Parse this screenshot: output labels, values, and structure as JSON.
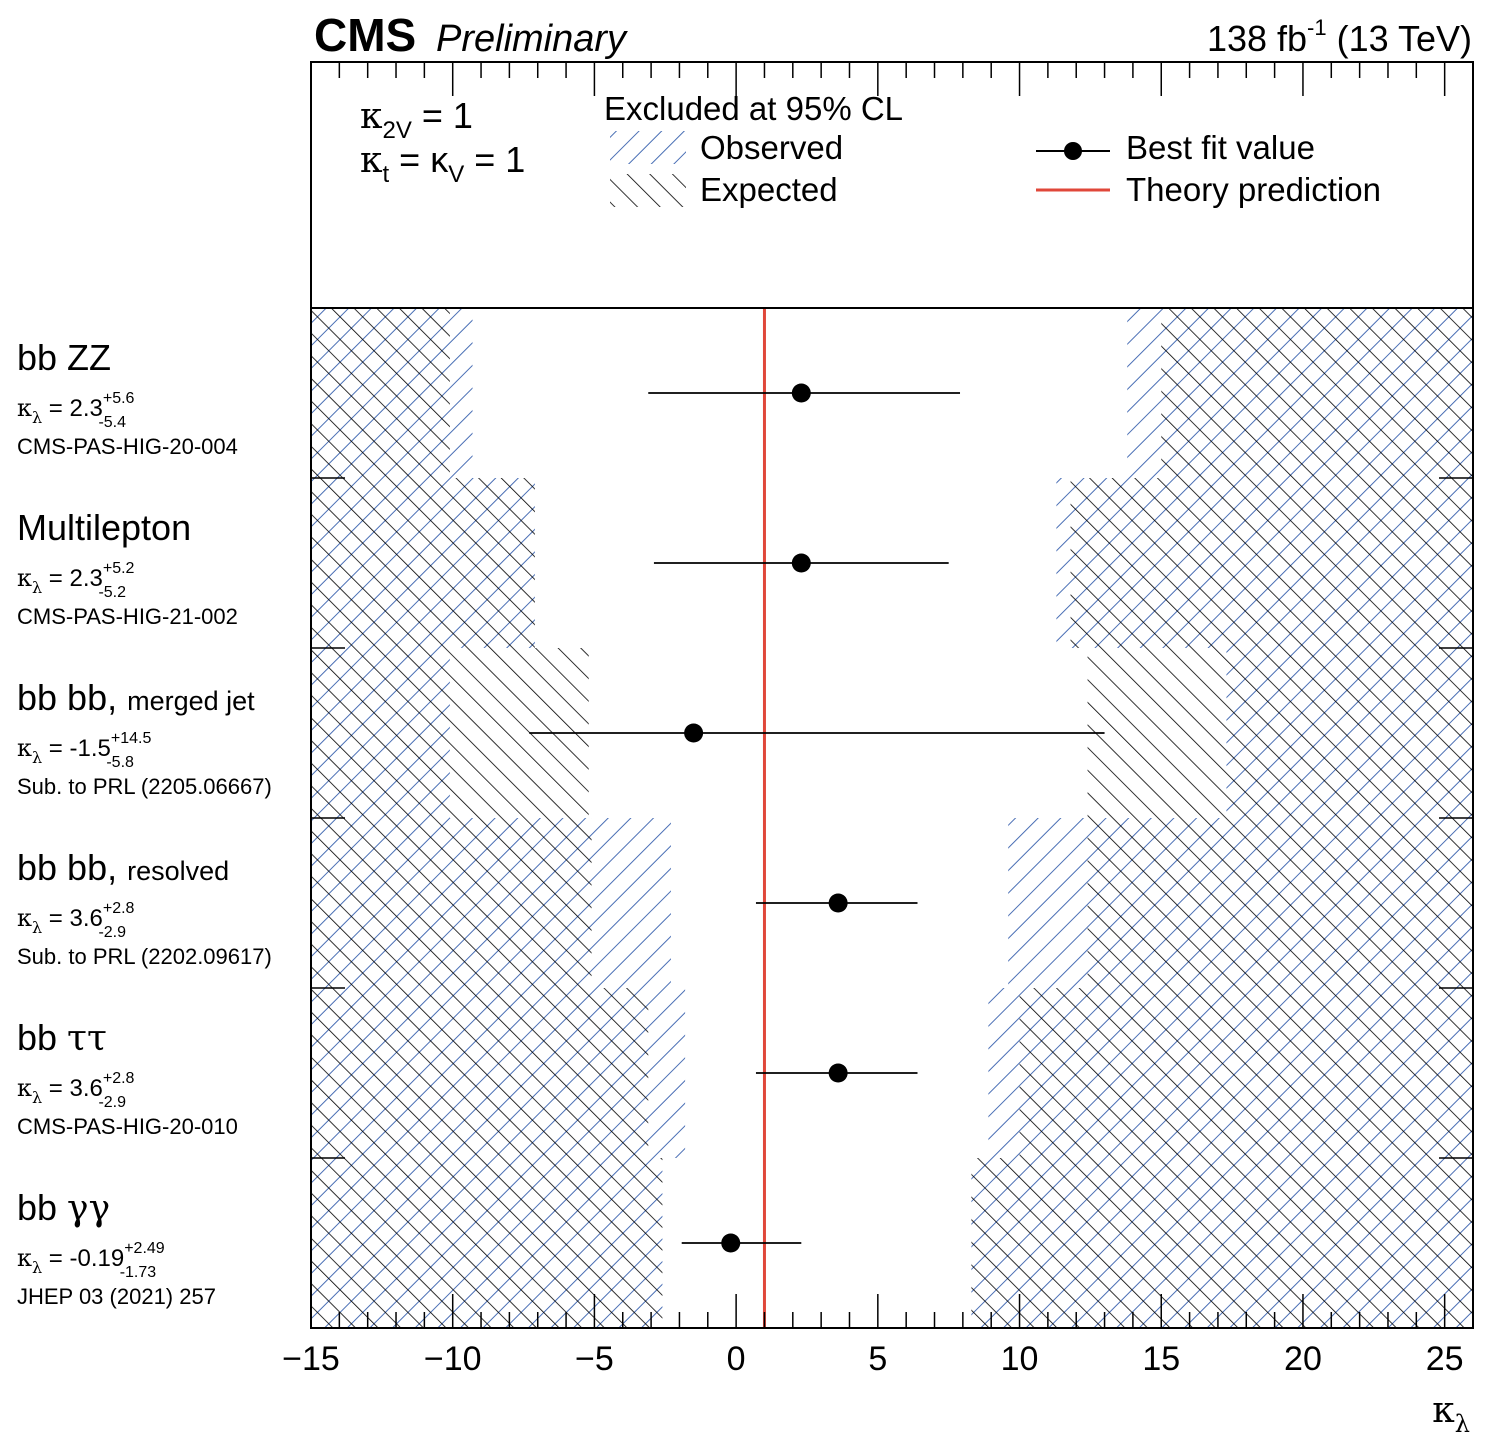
{
  "header": {
    "experiment": "CMS",
    "status": "Preliminary",
    "lumi_value": "138 fb",
    "lumi_exp": "-1",
    "energy": " (13 TeV)"
  },
  "conditions": {
    "line1_sym": "κ",
    "line1_sub": "2V",
    "line1_val": " = 1",
    "line2_sym": "κ",
    "line2_sub": "t",
    "line2_mid": " = κ",
    "line2_sub2": "V",
    "line2_val": " = 1"
  },
  "legend": {
    "header": "Excluded at 95% CL",
    "observed": "Observed",
    "expected": "Expected",
    "bestfit": "Best fit value",
    "theory": "Theory prediction"
  },
  "colors": {
    "observed_hatch": "#4a6fb5",
    "expected_hatch": "#000000",
    "theory_line": "#e0473a",
    "frame": "#000000"
  },
  "chart_data": {
    "type": "scatter",
    "title": "CMS Preliminary",
    "xlabel": "κλ",
    "xlim": [
      -15,
      26
    ],
    "xticks": [
      -15,
      -10,
      -5,
      0,
      5,
      10,
      15,
      20,
      25
    ],
    "xtick_labels": [
      "−15",
      "−10",
      "−5",
      "0",
      "5",
      "10",
      "15",
      "20",
      "25"
    ],
    "theory_prediction": 1,
    "channels": [
      {
        "name": "bb ZZ",
        "name_small": "",
        "best": 2.3,
        "up": 5.6,
        "down": 5.4,
        "best_str": "2.3",
        "up_str": "+5.6",
        "down_str": "-5.4",
        "ref": "CMS-PAS-HIG-20-004",
        "obs": [
          -9.3,
          13.8
        ],
        "exp": [
          -10.1,
          15.0
        ]
      },
      {
        "name": "Multilepton",
        "name_small": "",
        "best": 2.3,
        "up": 5.2,
        "down": 5.2,
        "best_str": "2.3",
        "up_str": "+5.2",
        "down_str": "-5.2",
        "ref": "CMS-PAS-HIG-21-002",
        "obs": [
          -7.1,
          11.3
        ],
        "exp": [
          -7.1,
          11.8
        ]
      },
      {
        "name": "bb bb,",
        "name_small": "merged jet",
        "best": -1.5,
        "up": 14.5,
        "down": 5.8,
        "best_str": "-1.5",
        "up_str": "+14.5",
        "down_str": "-5.8",
        "ref": "Sub. to PRL (2205.06667)",
        "obs": [
          -10.1,
          17.3
        ],
        "exp": [
          -5.2,
          12.4
        ]
      },
      {
        "name": "bb bb,",
        "name_small": "resolved",
        "best": 3.6,
        "up": 2.8,
        "down": 2.9,
        "best_str": "3.6",
        "up_str": "+2.8",
        "down_str": "-2.9",
        "ref": "Sub. to PRL (2202.09617)",
        "obs": [
          -2.3,
          9.6
        ],
        "exp": [
          -5.1,
          12.4
        ]
      },
      {
        "name": "bb ττ",
        "name_small": "",
        "best": 3.6,
        "up": 2.8,
        "down": 2.9,
        "best_str": "3.6",
        "up_str": "+2.8",
        "down_str": "-2.9",
        "ref": "CMS-PAS-HIG-20-010",
        "obs": [
          -1.8,
          8.9
        ],
        "exp": [
          -3.1,
          10.0
        ]
      },
      {
        "name": "bb γγ",
        "name_small": "",
        "best": -0.19,
        "up": 2.49,
        "down": 1.73,
        "best_str": "-0.19",
        "up_str": "+2.49",
        "down_str": "-1.73",
        "ref": "JHEP 03 (2021) 257",
        "obs": [
          -2.6,
          8.3
        ],
        "exp": [
          -2.6,
          8.3
        ]
      }
    ]
  }
}
